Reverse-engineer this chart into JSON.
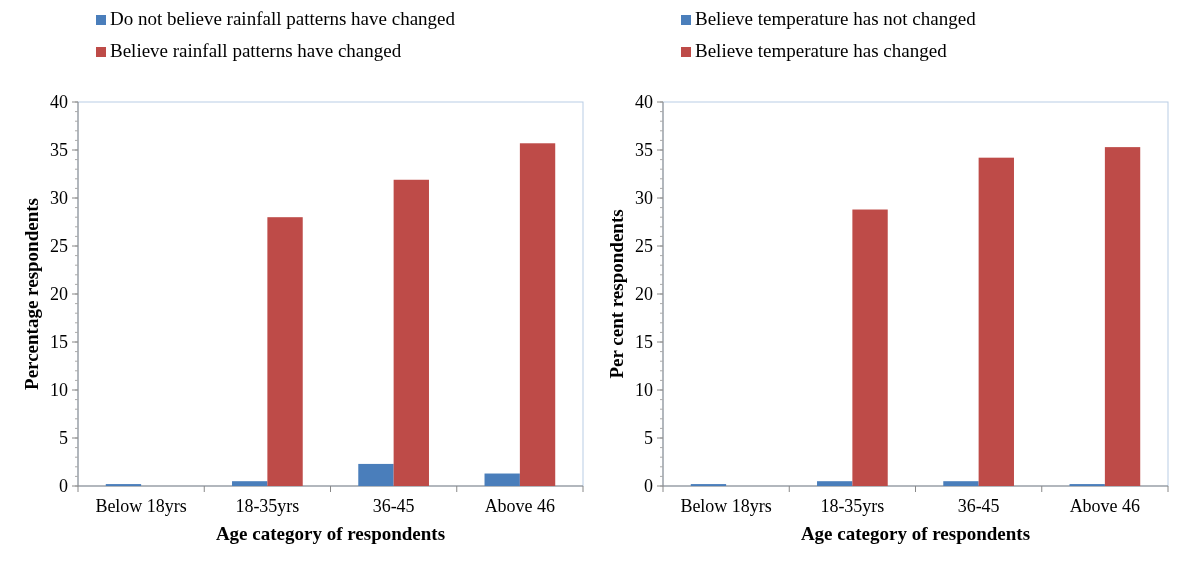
{
  "chart_data": [
    {
      "type": "bar",
      "xlabel": "Age category of respondents",
      "ylabel": "Percentage respondents",
      "categories": [
        "Below 18yrs",
        "18-35yrs",
        "36-45",
        "Above 46"
      ],
      "series": [
        {
          "name": "Do not believe rainfall patterns have changed",
          "color": "#4a7ebb",
          "values": [
            0.2,
            0.5,
            2.3,
            1.3
          ]
        },
        {
          "name": "Believe rainfall patterns have changed",
          "color": "#be4b48",
          "values": [
            0,
            28,
            31.9,
            35.7
          ]
        }
      ],
      "ylim": [
        0,
        40
      ],
      "yticks": [
        0,
        5,
        10,
        15,
        20,
        25,
        30,
        35,
        40
      ],
      "grid": false,
      "legend": "top left"
    },
    {
      "type": "bar",
      "xlabel": "Age category of respondents",
      "ylabel": "Per cent respondents",
      "categories": [
        "Below 18yrs",
        "18-35yrs",
        "36-45",
        "Above 46"
      ],
      "series": [
        {
          "name": "Believe temperature has not changed",
          "color": "#4a7ebb",
          "values": [
            0.2,
            0.5,
            0.5,
            0.2
          ]
        },
        {
          "name": "Believe temperature has changed",
          "color": "#be4b48",
          "values": [
            0,
            28.8,
            34.2,
            35.3
          ]
        }
      ],
      "ylim": [
        0,
        40
      ],
      "yticks": [
        0,
        5,
        10,
        15,
        20,
        25,
        30,
        35,
        40
      ],
      "grid": false,
      "legend": "top left"
    }
  ]
}
